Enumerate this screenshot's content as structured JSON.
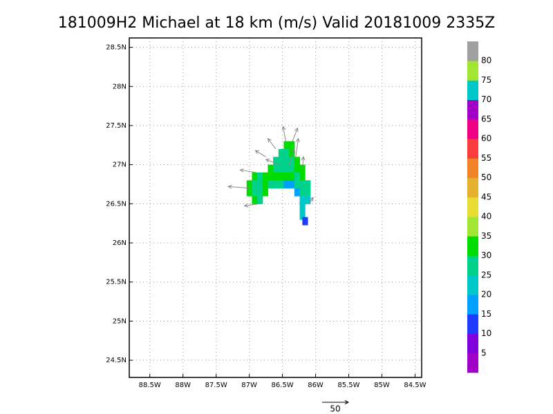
{
  "chart_data": {
    "type": "map",
    "title": "181009H2 Michael at 18 km (m/s) Valid 20181009 2335Z",
    "xlim": [
      -88.81,
      -84.4
    ],
    "ylim": [
      24.28,
      28.62
    ],
    "grid": true,
    "xticks": [
      {
        "value": -88.5,
        "label": "88.5W"
      },
      {
        "value": -88,
        "label": "88W"
      },
      {
        "value": -87.5,
        "label": "87.5W"
      },
      {
        "value": -87,
        "label": "87W"
      },
      {
        "value": -86.5,
        "label": "86.5W"
      },
      {
        "value": -86,
        "label": "86W"
      },
      {
        "value": -85.5,
        "label": "85.5W"
      },
      {
        "value": -85,
        "label": "85W"
      },
      {
        "value": -84.5,
        "label": "84.5W"
      }
    ],
    "yticks": [
      {
        "value": 24.5,
        "label": "24.5N"
      },
      {
        "value": 25,
        "label": "25N"
      },
      {
        "value": 25.5,
        "label": "25.5N"
      },
      {
        "value": 26,
        "label": "26N"
      },
      {
        "value": 26.5,
        "label": "26.5N"
      },
      {
        "value": 27,
        "label": "27N"
      },
      {
        "value": 27.5,
        "label": "27.5N"
      },
      {
        "value": 28,
        "label": "28N"
      },
      {
        "value": 28.5,
        "label": "28.5N"
      }
    ],
    "colorbar": {
      "levels": [
        5,
        10,
        15,
        20,
        25,
        30,
        35,
        40,
        45,
        50,
        55,
        60,
        65,
        70,
        75,
        80
      ],
      "colors": [
        "#a000c8",
        "#8200dc",
        "#1e3cff",
        "#00a0ff",
        "#00c8c8",
        "#00d28c",
        "#00dc00",
        "#a0e632",
        "#e6dc32",
        "#e6af2d",
        "#f08228",
        "#fa3c3c",
        "#f00082",
        "#a000c8",
        "#00c8c8",
        "#a0e632",
        "#a0a0a0"
      ]
    },
    "cells": {
      "lon": [
        -86.44,
        -86.36,
        -86.52,
        -86.44,
        -86.36,
        -86.6,
        -86.52,
        -86.44,
        -86.36,
        -86.28,
        -86.68,
        -86.6,
        -86.52,
        -86.44,
        -86.36,
        -86.28,
        -86.2,
        -86.92,
        -86.84,
        -86.76,
        -86.68,
        -86.6,
        -86.52,
        -86.44,
        -86.36,
        -86.28,
        -86.2,
        -87.0,
        -86.92,
        -86.84,
        -86.76,
        -86.68,
        -86.6,
        -86.52,
        -86.44,
        -86.36,
        -86.28,
        -86.2,
        -86.12,
        -87.0,
        -86.92,
        -86.84,
        -86.76,
        -86.28,
        -86.2,
        -86.12,
        -86.92,
        -86.84,
        -86.2,
        -86.12,
        -86.2,
        -86.2,
        -86.16
      ],
      "lat": [
        27.25,
        27.25,
        27.15,
        27.15,
        27.15,
        27.05,
        27.05,
        27.05,
        27.05,
        27.05,
        26.95,
        26.95,
        26.95,
        26.95,
        26.95,
        26.95,
        26.95,
        26.85,
        26.85,
        26.85,
        26.85,
        26.85,
        26.85,
        26.85,
        26.85,
        26.85,
        26.85,
        26.75,
        26.75,
        26.75,
        26.75,
        26.75,
        26.75,
        26.75,
        26.75,
        26.75,
        26.75,
        26.75,
        26.75,
        26.65,
        26.65,
        26.65,
        26.65,
        26.65,
        26.65,
        26.65,
        26.55,
        26.55,
        26.55,
        26.55,
        26.45,
        26.35,
        26.28
      ],
      "values": [
        32,
        32,
        28,
        28,
        32,
        28,
        28,
        28,
        28,
        32,
        32,
        28,
        28,
        28,
        28,
        33,
        32,
        32,
        28,
        32,
        32,
        33,
        33,
        33,
        32,
        28,
        32,
        32,
        28,
        28,
        33,
        28,
        28,
        26,
        18,
        16,
        26,
        28,
        26,
        32,
        28,
        28,
        33,
        18,
        26,
        26,
        32,
        28,
        24,
        24,
        24,
        20,
        14
      ]
    },
    "vectors": {
      "lon": [
        -86.45,
        -86.35,
        -86.6,
        -86.75,
        -86.55,
        -86.4,
        -86.9,
        -87.0,
        -86.85,
        -86.3,
        -86.2,
        -86.1
      ],
      "lat": [
        27.3,
        27.3,
        27.2,
        27.1,
        27.0,
        27.0,
        26.9,
        26.7,
        26.5,
        27.1,
        26.9,
        26.5
      ],
      "u": [
        -5,
        10,
        -15,
        -20,
        -25,
        10,
        -30,
        -40,
        -28,
        5,
        2,
        8
      ],
      "v": [
        28,
        25,
        20,
        12,
        10,
        30,
        5,
        3,
        -4,
        35,
        30,
        12
      ]
    },
    "vector_scale": {
      "value": 50
    }
  }
}
